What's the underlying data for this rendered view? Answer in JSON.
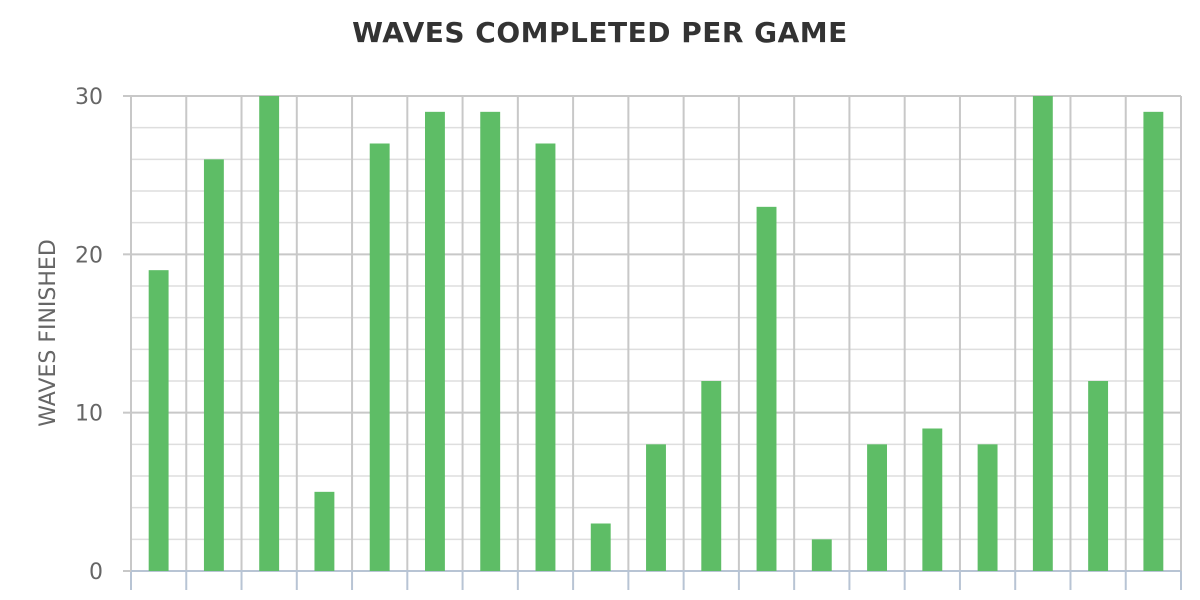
{
  "chart_data": {
    "type": "bar",
    "title": "WAVES COMPLETED PER GAME",
    "xlabel": "",
    "ylabel": "WAVES FINISHED",
    "ylim": [
      0,
      30
    ],
    "yticks": [
      "0",
      "10",
      "20",
      "30"
    ],
    "grid": true,
    "values": [
      19,
      26,
      30,
      5,
      27,
      29,
      29,
      27,
      3,
      8,
      12,
      23,
      2,
      8,
      9,
      8,
      30,
      12,
      29
    ],
    "colors": {
      "bar": "#5ebd66",
      "grid_major": "#c8c8c8",
      "grid_minor": "#dedede",
      "axis": "#b8c4d4"
    }
  }
}
